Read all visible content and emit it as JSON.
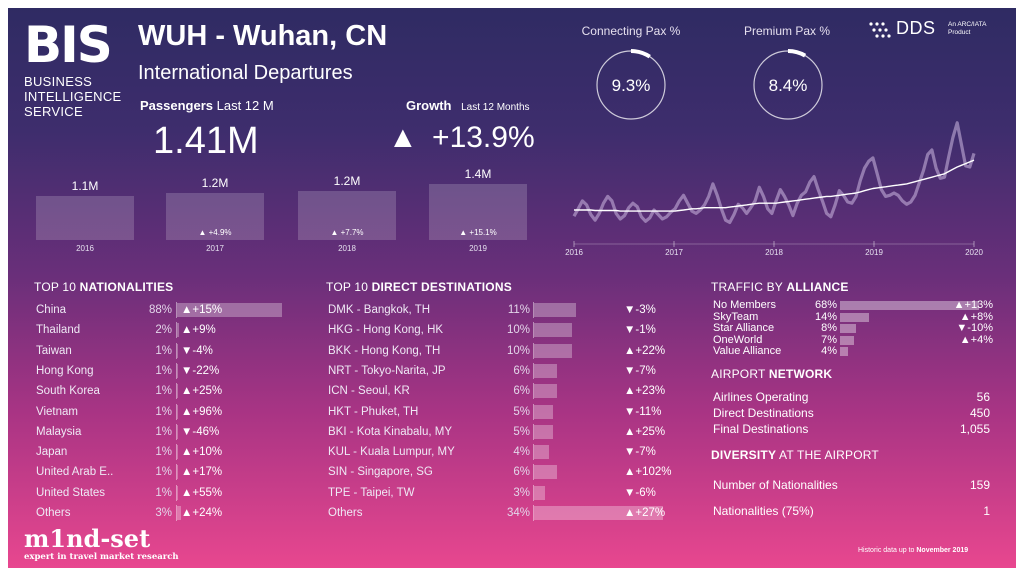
{
  "brand": {
    "logo_text": "BIS",
    "lines": [
      "BUSINESS",
      "INTELLIGENCE",
      "SERVICE"
    ],
    "partner_logo": "DDS",
    "partner_tagline_1": "An ARC/IATA",
    "partner_tagline_2": "Product"
  },
  "header": {
    "title": "WUH - Wuhan, CN",
    "subtitle": "International Departures"
  },
  "passengers": {
    "label_bold": "Passengers",
    "label_rest": "Last 12 M",
    "value": "1.41M"
  },
  "growth": {
    "label_bold": "Growth",
    "label_rest": "Last 12 Months",
    "arrow": "▲",
    "value": "+13.9%"
  },
  "kpis": [
    {
      "label": "Connecting Pax %",
      "value": "9.3%",
      "fraction": 0.093
    },
    {
      "label": "Premium Pax %",
      "value": "8.4%",
      "fraction": 0.084
    }
  ],
  "yearly": [
    {
      "year": "2016",
      "value": "1.1M",
      "growth": "",
      "num": 1.1
    },
    {
      "year": "2017",
      "value": "1.2M",
      "growth": "▲ +4.9%",
      "num": 1.18
    },
    {
      "year": "2018",
      "value": "1.2M",
      "growth": "▲ +7.7%",
      "num": 1.22
    },
    {
      "year": "2019",
      "value": "1.4M",
      "growth": "▲ +15.1%",
      "num": 1.4
    }
  ],
  "chart_data": {
    "type": "line",
    "x_ticks": [
      "2016",
      "2017",
      "2018",
      "2019",
      "2020"
    ],
    "series": [
      {
        "values": [
          0.35,
          0.48,
          0.62,
          0.55,
          0.38,
          0.28,
          0.4,
          0.58,
          0.7,
          0.62,
          0.4,
          0.3,
          0.36,
          0.5,
          0.58,
          0.52,
          0.34,
          0.26,
          0.32,
          0.46,
          0.38,
          0.3,
          0.34,
          0.42,
          0.48,
          0.62,
          0.72,
          0.58,
          0.44,
          0.4,
          0.46,
          0.55,
          0.7,
          0.92,
          0.72,
          0.48,
          0.28,
          0.24,
          0.38,
          0.56,
          0.5,
          0.4,
          0.5,
          0.62,
          0.86,
          0.7,
          0.48,
          0.4,
          0.62,
          0.82,
          0.7,
          0.55,
          0.36,
          0.58,
          0.72,
          0.78,
          0.95,
          1.05,
          0.82,
          0.62,
          0.4,
          0.34,
          0.55,
          0.8,
          0.72,
          0.6,
          0.58,
          0.7,
          0.98,
          1.2,
          1.32,
          1.38,
          1.1,
          0.82,
          0.7,
          0.72,
          0.76,
          0.72,
          0.62,
          0.56,
          0.6,
          0.72,
          0.94,
          1.16,
          1.44,
          1.52,
          1.2,
          1.02,
          1.04,
          1.4,
          1.74,
          2.0,
          1.62,
          1.24,
          1.22,
          1.46
        ]
      },
      {
        "values": [
          0.46,
          0.46,
          0.46,
          0.46,
          0.46,
          0.45,
          0.45,
          0.45,
          0.45,
          0.45,
          0.45,
          0.44,
          0.44,
          0.44,
          0.44,
          0.44,
          0.44,
          0.44,
          0.44,
          0.44,
          0.44,
          0.44,
          0.44,
          0.44,
          0.44,
          0.45,
          0.46,
          0.47,
          0.48,
          0.48,
          0.49,
          0.5,
          0.5,
          0.5,
          0.5,
          0.5,
          0.5,
          0.51,
          0.52,
          0.53,
          0.54,
          0.55,
          0.56,
          0.57,
          0.58,
          0.58,
          0.58,
          0.58,
          0.58,
          0.59,
          0.6,
          0.61,
          0.62,
          0.63,
          0.64,
          0.65,
          0.66,
          0.67,
          0.68,
          0.69,
          0.7,
          0.7,
          0.71,
          0.72,
          0.73,
          0.74,
          0.75,
          0.76,
          0.78,
          0.8,
          0.82,
          0.84,
          0.85,
          0.86,
          0.87,
          0.88,
          0.89,
          0.9,
          0.91,
          0.92,
          0.94,
          0.96,
          0.98,
          1.0,
          1.02,
          1.04,
          1.06,
          1.08,
          1.1,
          1.14,
          1.18,
          1.22,
          1.25,
          1.28,
          1.31,
          1.34
        ]
      }
    ]
  },
  "nationalities": {
    "title_plain": "TOP 10 ",
    "title_bold": "NATIONALITIES",
    "rows": [
      {
        "name": "China",
        "pct": "88%",
        "share": 88,
        "growth": "▲+15%"
      },
      {
        "name": "Thailand",
        "pct": "2%",
        "share": 2,
        "growth": "▲+9%"
      },
      {
        "name": "Taiwan",
        "pct": "1%",
        "share": 1,
        "growth": "▼-4%"
      },
      {
        "name": "Hong Kong",
        "pct": "1%",
        "share": 1,
        "growth": "▼-22%"
      },
      {
        "name": "South Korea",
        "pct": "1%",
        "share": 1,
        "growth": "▲+25%"
      },
      {
        "name": "Vietnam",
        "pct": "1%",
        "share": 1,
        "growth": "▲+96%"
      },
      {
        "name": "Malaysia",
        "pct": "1%",
        "share": 1,
        "growth": "▼-46%"
      },
      {
        "name": "Japan",
        "pct": "1%",
        "share": 1,
        "growth": "▲+10%"
      },
      {
        "name": "United Arab E..",
        "pct": "1%",
        "share": 1,
        "growth": "▲+17%"
      },
      {
        "name": "United States",
        "pct": "1%",
        "share": 1,
        "growth": "▲+55%"
      },
      {
        "name": "Others",
        "pct": "3%",
        "share": 3,
        "growth": "▲+24%"
      }
    ]
  },
  "destinations": {
    "title_plain": "TOP 10 ",
    "title_bold": "DIRECT DESTINATIONS",
    "rows": [
      {
        "name": "DMK - Bangkok, TH",
        "pct": "11%",
        "share": 11,
        "growth": "▼-3%"
      },
      {
        "name": "HKG - Hong Kong, HK",
        "pct": "10%",
        "share": 10,
        "growth": "▼-1%"
      },
      {
        "name": "BKK - Hong Kong, TH",
        "pct": "10%",
        "share": 10,
        "growth": "▲+22%"
      },
      {
        "name": "NRT - Tokyo-Narita, JP",
        "pct": "6%",
        "share": 6,
        "growth": "▼-7%"
      },
      {
        "name": "ICN - Seoul, KR",
        "pct": "6%",
        "share": 6,
        "growth": "▲+23%"
      },
      {
        "name": "HKT - Phuket, TH",
        "pct": "5%",
        "share": 5,
        "growth": "▼-11%"
      },
      {
        "name": "BKI - Kota Kinabalu, MY",
        "pct": "5%",
        "share": 5,
        "growth": "▲+25%"
      },
      {
        "name": "KUL - Kuala Lumpur, MY",
        "pct": "4%",
        "share": 4,
        "growth": "▼-7%"
      },
      {
        "name": "SIN - Singapore, SG",
        "pct": "6%",
        "share": 6,
        "growth": "▲+102%"
      },
      {
        "name": "TPE - Taipei, TW",
        "pct": "3%",
        "share": 3,
        "growth": "▼-6%"
      },
      {
        "name": "Others",
        "pct": "34%",
        "share": 34,
        "growth": "▲+27%"
      }
    ]
  },
  "alliance": {
    "title_plain": "TRAFFIC BY ",
    "title_bold": "ALLIANCE",
    "rows": [
      {
        "name": "No Members",
        "pct": "68%",
        "share": 68,
        "growth": "▲+13%"
      },
      {
        "name": "SkyTeam",
        "pct": "14%",
        "share": 14,
        "growth": "▲+8%"
      },
      {
        "name": "Star Alliance",
        "pct": "8%",
        "share": 8,
        "growth": "▼-10%"
      },
      {
        "name": "OneWorld",
        "pct": "7%",
        "share": 7,
        "growth": "▲+4%"
      },
      {
        "name": "Value Alliance",
        "pct": "4%",
        "share": 4,
        "growth": ""
      }
    ]
  },
  "network": {
    "title_plain": "AIRPORT ",
    "title_bold": "NETWORK",
    "rows": [
      {
        "label": "Airlines Operating",
        "value": "56"
      },
      {
        "label": "Direct Destinations",
        "value": "450"
      },
      {
        "label": "Final Destinations",
        "value": "1,055"
      }
    ]
  },
  "diversity": {
    "title_bold": "DIVERSITY",
    "title_plain": " AT THE AIRPORT",
    "rows": [
      {
        "label": "Number of Nationalities",
        "value": "159"
      },
      {
        "label": "Nationalities (75%)",
        "value": "1"
      }
    ]
  },
  "footer": {
    "mindset": "m1nd-set",
    "mindset_sub": "expert in travel market research",
    "note_plain": "Historic data up to ",
    "note_bold": "November 2019"
  }
}
